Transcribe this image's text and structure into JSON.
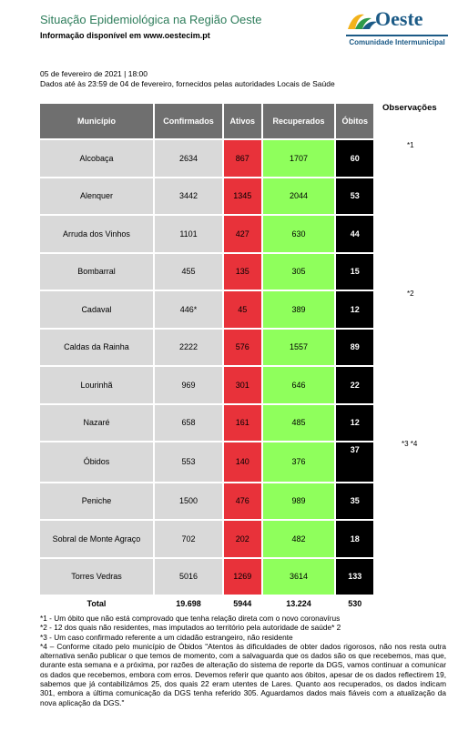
{
  "header": {
    "title": "Situação Epidemiológica na Região Oeste",
    "subtitle": "Informação disponível em www.oestecim.pt"
  },
  "logo": {
    "name": "Oeste",
    "tagline": "Comunidade Intermunicipal"
  },
  "report": {
    "date_time": "05 de fevereiro de 2021 | 18:00",
    "data_source": "Dados até às 23:59 de 04 de fevereiro, fornecidos pelas autoridades Locais de Saúde"
  },
  "observations": {
    "title": "Observações",
    "notes": [
      "*1",
      "*2",
      "*3 *4"
    ]
  },
  "table": {
    "headers": {
      "municipio": "Município",
      "confirmados": "Confirmados",
      "ativos": "Ativos",
      "recuperados": "Recuperados",
      "obitos": "Óbitos"
    },
    "rows": [
      {
        "municipio": "Alcobaça",
        "confirmados": "2634",
        "ativos": "867",
        "recuperados": "1707",
        "obitos": "60"
      },
      {
        "municipio": "Alenquer",
        "confirmados": "3442",
        "ativos": "1345",
        "recuperados": "2044",
        "obitos": "53"
      },
      {
        "municipio": "Arruda dos Vinhos",
        "confirmados": "1101",
        "ativos": "427",
        "recuperados": "630",
        "obitos": "44"
      },
      {
        "municipio": "Bombarral",
        "confirmados": "455",
        "ativos": "135",
        "recuperados": "305",
        "obitos": "15"
      },
      {
        "municipio": "Cadaval",
        "confirmados": "446*",
        "ativos": "45",
        "recuperados": "389",
        "obitos": "12"
      },
      {
        "municipio": "Caldas da Rainha",
        "confirmados": "2222",
        "ativos": "576",
        "recuperados": "1557",
        "obitos": "89"
      },
      {
        "municipio": "Lourinhã",
        "confirmados": "969",
        "ativos": "301",
        "recuperados": "646",
        "obitos": "22"
      },
      {
        "municipio": "Nazaré",
        "confirmados": "658",
        "ativos": "161",
        "recuperados": "485",
        "obitos": "12"
      },
      {
        "municipio": "Óbidos",
        "confirmados": "553",
        "ativos": "140",
        "recuperados": "376",
        "obitos": "37"
      },
      {
        "municipio": "Peniche",
        "confirmados": "1500",
        "ativos": "476",
        "recuperados": "989",
        "obitos": "35"
      },
      {
        "municipio": "Sobral de Monte Agraço",
        "confirmados": "702",
        "ativos": "202",
        "recuperados": "482",
        "obitos": "18"
      },
      {
        "municipio": "Torres Vedras",
        "confirmados": "5016",
        "ativos": "1269",
        "recuperados": "3614",
        "obitos": "133"
      }
    ],
    "total": {
      "label": "Total",
      "confirmados": "19.698",
      "ativos": "5944",
      "recuperados": "13.224",
      "obitos": "530"
    }
  },
  "footnotes": [
    "*1 - Um óbito que não está comprovado que tenha relação direta com o novo coronavírus",
    "*2 - 12 dos quais não residentes, mas imputados ao território pela autoridade de saúde* 2",
    "*3 - Um caso confirmado referente a um cidadão estrangeiro, não residente",
    "*4 – Conforme citado pelo município de Óbidos \"Atentos às dificuldades de obter dados rigorosos, não nos resta outra alternativa senão publicar o que temos de momento, com a salvaguarda que os dados são os que recebemos, mas que, durante esta semana e a próxima, por razões de alteração do sistema de reporte da DGS, vamos continuar a comunicar os dados que recebemos, embora com erros. Devemos referir que quanto aos óbitos, apesar de os dados reflectirem 19, sabemos que já contabilizámos 25, dos quais 22 eram utentes de Lares. Quanto aos recuperados, os dados indicam 301, embora a última comunicação da DGS tenha referido 305. Aguardamos dados mais fiáveis com a atualização da nova aplicação da DGS.\""
  ],
  "colors": {
    "header_bg": "#6f6f6f",
    "cell_bg": "#d9d9d9",
    "ativos": "#e8323a",
    "recuperados": "#8fff5c",
    "obitos": "#000000",
    "title": "#2e7d5b",
    "logo": "#1b5a86"
  }
}
